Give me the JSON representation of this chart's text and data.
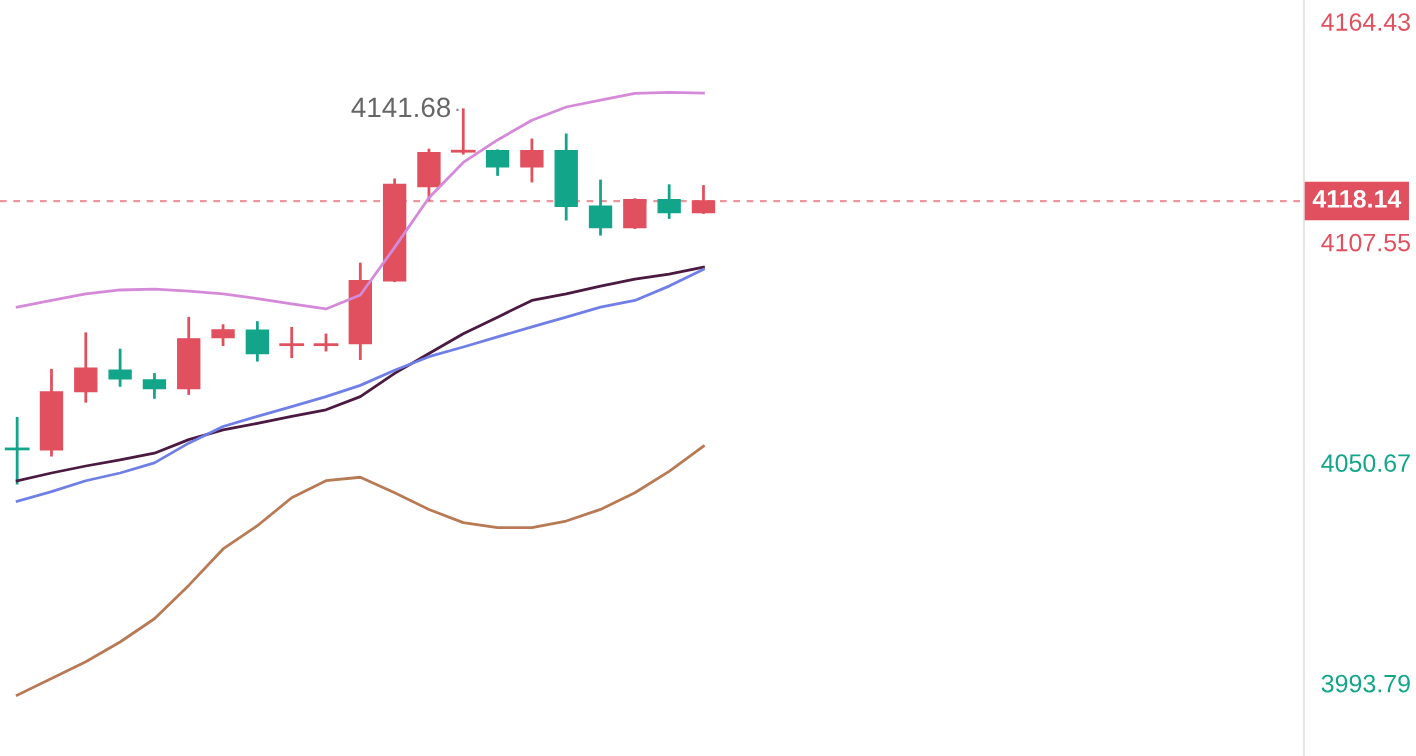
{
  "chart_data": {
    "type": "candlestick",
    "categories": [
      null,
      null,
      null,
      null,
      null,
      null,
      null,
      null,
      null,
      null,
      null,
      null,
      null,
      null,
      null,
      null,
      null,
      null,
      null,
      null,
      null,
      null,
      null,
      null,
      null,
      null,
      null,
      null,
      null,
      null,
      null,
      null,
      null,
      null,
      null,
      null,
      null,
      null
    ],
    "ohlc": [
      [
        4054.2,
        4062.1,
        4045.4,
        4054.2
      ],
      [
        4054.0,
        4074.5,
        4052.6,
        4068.9
      ],
      [
        4069.0,
        4083.9,
        4066.5,
        4075.0
      ],
      [
        4074.5,
        4079.7,
        4070.6,
        4072.3
      ],
      [
        4072.0,
        4073.4,
        4067.5,
        4069.8
      ],
      [
        4069.8,
        4087.9,
        4068.5,
        4082.6
      ],
      [
        4082.9,
        4086.0,
        4081.1,
        4084.9
      ],
      [
        4084.8,
        4086.8,
        4077.1,
        4078.8
      ],
      [
        4081.1,
        4085.3,
        4078.0,
        4081.1
      ],
      [
        4081.1,
        4083.6,
        4079.7,
        4081.1
      ],
      [
        4081.4,
        4101.9,
        4077.5,
        4097.6
      ],
      [
        4097.6,
        4123.6,
        4097.6,
        4122.4
      ],
      [
        4121.9,
        4131.3,
        4118.5,
        4130.6
      ],
      [
        4131.0,
        4141.68,
        4130.5,
        4131.0
      ],
      [
        4131.1,
        4131.1,
        4125.0,
        4127.0
      ],
      [
        4127.0,
        4133.9,
        4123.3,
        4131.1
      ],
      [
        4131.1,
        4135.2,
        4113.5,
        4116.8
      ],
      [
        4116.8,
        4123.3,
        4109.6,
        4111.3
      ],
      [
        4111.3,
        4118.5,
        4111.3,
        4118.5
      ],
      [
        4118.5,
        4122.1,
        4113.9,
        4115.2
      ],
      [
        4115.2,
        4121.9,
        4115.2,
        4118.14
      ],
      null,
      null,
      null,
      null,
      null,
      null,
      null,
      null,
      null,
      null,
      null,
      null,
      null,
      null,
      null,
      null,
      null
    ],
    "colors": [
      "#12a58a",
      "#e0505e",
      "#e0505e",
      "#12a58a",
      "#12a58a",
      "#e0505e",
      "#e0505e",
      "#12a58a",
      "#e0505e",
      "#e0505e",
      "#e0505e",
      "#e0505e",
      "#e0505e",
      "#e0505e",
      "#12a58a",
      "#e0505e",
      "#12a58a",
      "#12a58a",
      "#e0505e",
      "#12a58a",
      "#e0505e",
      null,
      null,
      null,
      null,
      null,
      null,
      null,
      null,
      null,
      null,
      null,
      null,
      null,
      null,
      null,
      null,
      null
    ],
    "series": [
      {
        "type": "line",
        "color": "#d58ad9",
        "values": [
          4090.8,
          4092.5,
          4094.2,
          4095.2,
          4095.4,
          4094.9,
          4094.2,
          4093.0,
          4091.6,
          4090.3,
          4093.9,
          4106.2,
          4119.0,
          4128.1,
          4133.9,
          4139.0,
          4142.4,
          4144.2,
          4145.9,
          4146.2,
          4146.0,
          null,
          null,
          null,
          null,
          null,
          null,
          null,
          null,
          null,
          null,
          null,
          null,
          null,
          null,
          null,
          null,
          null
        ]
      },
      {
        "type": "line",
        "color": "#4a1a40",
        "values": [
          4046.0,
          4048.0,
          4049.8,
          4051.4,
          4053.1,
          4056.6,
          4059.1,
          4060.8,
          4062.6,
          4064.3,
          4067.7,
          4073.7,
          4078.8,
          4083.9,
          4088.2,
          4092.5,
          4094.2,
          4096.2,
          4098.0,
          4099.3,
          4101.1,
          null,
          null,
          null,
          null,
          null,
          null,
          null,
          null,
          null,
          null,
          null,
          null,
          null,
          null,
          null,
          null,
          null
        ]
      },
      {
        "type": "line",
        "color": "#6f7fe6",
        "values": [
          4040.7,
          4043.2,
          4046.0,
          4048.0,
          4050.6,
          4055.7,
          4060.0,
          4062.6,
          4065.1,
          4067.7,
          4070.6,
          4074.5,
          4078.0,
          4080.5,
          4083.1,
          4085.7,
          4088.2,
          4090.8,
          4092.5,
          4096.2,
          4100.5,
          null,
          null,
          null,
          null,
          null,
          null,
          null,
          null,
          null,
          null,
          null,
          null,
          null,
          null,
          null,
          null,
          null
        ]
      },
      {
        "type": "line",
        "color": "#b87a55",
        "values": [
          3990.7,
          3995.0,
          3999.3,
          4004.4,
          4010.4,
          4019.0,
          4028.4,
          4034.4,
          4041.6,
          4046.0,
          4046.9,
          4042.9,
          4038.6,
          4035.2,
          4033.9,
          4033.9,
          4035.6,
          4038.6,
          4042.9,
          4048.4,
          4054.9,
          null,
          null,
          null,
          null,
          null,
          null,
          null,
          null,
          null,
          null,
          null,
          null,
          null,
          null,
          null,
          null,
          null
        ]
      }
    ],
    "ylim": [
      3975,
      4170
    ],
    "yticks": [
      4164.43,
      4107.55,
      4050.67,
      3993.79
    ],
    "ref_lines": [
      {
        "axis": "y",
        "value": 4118.14,
        "label": "4118.14",
        "color": "#e0505e",
        "line_style": "dashed"
      }
    ],
    "annotations": [
      "4141.68"
    ],
    "tick_labels": "y",
    "grid": false
  }
}
